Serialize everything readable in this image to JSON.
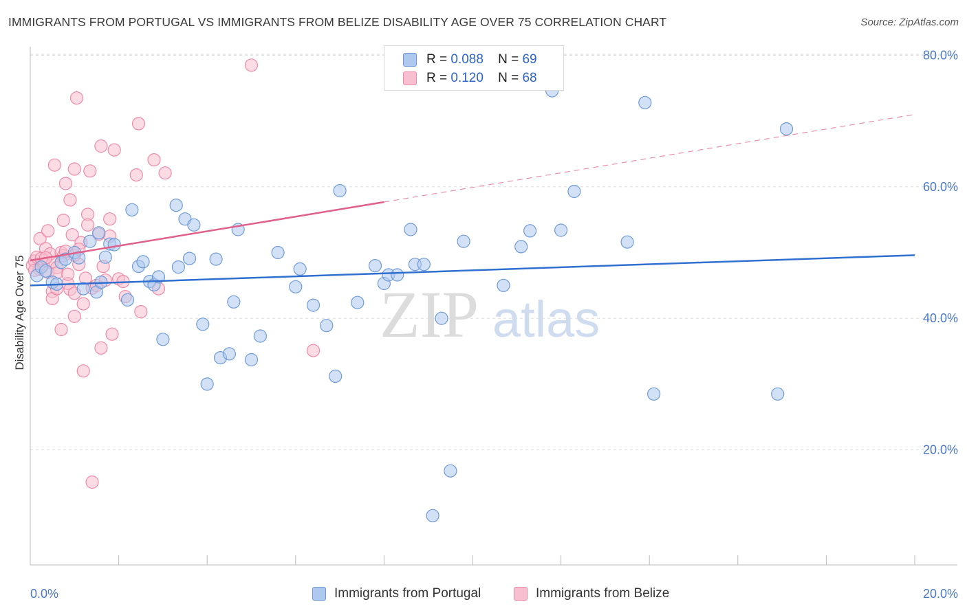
{
  "title": "IMMIGRANTS FROM PORTUGAL VS IMMIGRANTS FROM BELIZE DISABILITY AGE OVER 75 CORRELATION CHART",
  "source": "Source: ZipAtlas.com",
  "watermark": {
    "zip": "ZIP",
    "atlas": "atlas"
  },
  "legend": {
    "rows": [
      {
        "r_label": "R =",
        "r_value": "0.088",
        "n_label": "N =",
        "n_value": "69"
      },
      {
        "r_label": "R =",
        "r_value": "0.120",
        "n_label": "N =",
        "n_value": "68"
      }
    ]
  },
  "colors": {
    "portugal_fill": "#aec8ee",
    "portugal_stroke": "#6f9bd8",
    "portugal_line": "#2e6fcf",
    "belize_fill": "#f7bfd0",
    "belize_stroke": "#ee8aa8",
    "belize_line": "#e0608a",
    "grid": "#dddddd",
    "tick_text": "#4a78c8"
  },
  "chart_data": {
    "type": "scatter",
    "title": "IMMIGRANTS FROM PORTUGAL VS IMMIGRANTS FROM BELIZE DISABILITY AGE OVER 75 CORRELATION CHART",
    "xlabel": "",
    "ylabel": "Disability Age Over 75",
    "xlim": [
      0,
      20
    ],
    "ylim": [
      0,
      82
    ],
    "x_tick_labels": [
      "0.0%",
      "20.0%"
    ],
    "y_ticks": [
      20,
      40,
      60,
      80
    ],
    "y_tick_labels": [
      "20.0%",
      "40.0%",
      "60.0%",
      "80.0%"
    ],
    "grid": true,
    "legend_position": "top-center",
    "series": [
      {
        "name": "Immigrants from Portugal",
        "R": 0.088,
        "N": 69,
        "trend": {
          "x": [
            0,
            20
          ],
          "y": [
            45.0,
            49.6
          ],
          "dashed_after": null
        },
        "points": [
          [
            0.15,
            46.5
          ],
          [
            0.25,
            47.8
          ],
          [
            0.5,
            45.5
          ],
          [
            0.6,
            45.2
          ],
          [
            0.7,
            48.5
          ],
          [
            0.8,
            49.0
          ],
          [
            1.0,
            50.0
          ],
          [
            1.1,
            49.2
          ],
          [
            1.2,
            44.5
          ],
          [
            1.35,
            51.7
          ],
          [
            1.5,
            44.0
          ],
          [
            1.6,
            45.5
          ],
          [
            1.7,
            49.3
          ],
          [
            1.8,
            51.3
          ],
          [
            1.9,
            51.2
          ],
          [
            2.2,
            42.8
          ],
          [
            2.3,
            56.5
          ],
          [
            2.45,
            47.9
          ],
          [
            2.55,
            48.6
          ],
          [
            2.7,
            45.6
          ],
          [
            2.8,
            45.1
          ],
          [
            2.9,
            46.3
          ],
          [
            3.0,
            36.8
          ],
          [
            3.3,
            57.2
          ],
          [
            3.35,
            47.8
          ],
          [
            3.5,
            55.1
          ],
          [
            3.6,
            49.1
          ],
          [
            3.7,
            54.2
          ],
          [
            3.9,
            39.1
          ],
          [
            4.0,
            30.0
          ],
          [
            4.2,
            49.0
          ],
          [
            4.3,
            34.0
          ],
          [
            4.5,
            34.6
          ],
          [
            4.6,
            42.5
          ],
          [
            4.7,
            53.5
          ],
          [
            5.0,
            33.7
          ],
          [
            5.2,
            37.3
          ],
          [
            5.6,
            50.0
          ],
          [
            6.0,
            44.8
          ],
          [
            6.1,
            47.5
          ],
          [
            6.4,
            42.0
          ],
          [
            6.7,
            38.9
          ],
          [
            6.9,
            31.2
          ],
          [
            7.0,
            59.4
          ],
          [
            7.4,
            42.4
          ],
          [
            7.8,
            48.0
          ],
          [
            8.0,
            45.3
          ],
          [
            8.1,
            46.6
          ],
          [
            8.3,
            46.6
          ],
          [
            8.6,
            53.5
          ],
          [
            8.7,
            48.2
          ],
          [
            8.9,
            48.2
          ],
          [
            9.3,
            40.0
          ],
          [
            9.5,
            16.8
          ],
          [
            9.8,
            51.7
          ],
          [
            10.7,
            45.0
          ],
          [
            11.1,
            50.9
          ],
          [
            11.3,
            53.3
          ],
          [
            11.8,
            74.6
          ],
          [
            12.0,
            53.4
          ],
          [
            12.3,
            59.3
          ],
          [
            13.5,
            51.6
          ],
          [
            13.9,
            72.8
          ],
          [
            14.1,
            28.5
          ],
          [
            16.9,
            28.5
          ],
          [
            17.1,
            68.8
          ],
          [
            9.1,
            10.0
          ],
          [
            1.55,
            53.0
          ],
          [
            0.35,
            47.2
          ]
        ]
      },
      {
        "name": "Immigrants from Belize",
        "R": 0.12,
        "N": 68,
        "trend": {
          "x": [
            0,
            20
          ],
          "y": [
            48.8,
            71.0
          ],
          "solid_until_x": 8.0
        },
        "points": [
          [
            0.05,
            48.0
          ],
          [
            0.1,
            48.7
          ],
          [
            0.15,
            49.3
          ],
          [
            0.2,
            47.5
          ],
          [
            0.22,
            52.1
          ],
          [
            0.3,
            48.2
          ],
          [
            0.35,
            50.6
          ],
          [
            0.4,
            53.3
          ],
          [
            0.45,
            49.8
          ],
          [
            0.5,
            48.5
          ],
          [
            0.5,
            44.1
          ],
          [
            0.5,
            43.0
          ],
          [
            0.55,
            63.3
          ],
          [
            0.6,
            44.5
          ],
          [
            0.6,
            47.7
          ],
          [
            0.7,
            50.0
          ],
          [
            0.7,
            38.3
          ],
          [
            0.75,
            54.9
          ],
          [
            0.8,
            60.5
          ],
          [
            0.85,
            45.3
          ],
          [
            0.9,
            58.0
          ],
          [
            0.9,
            44.4
          ],
          [
            0.95,
            52.7
          ],
          [
            1.0,
            43.8
          ],
          [
            1.0,
            40.3
          ],
          [
            1.0,
            62.7
          ],
          [
            1.05,
            73.5
          ],
          [
            1.1,
            48.2
          ],
          [
            1.15,
            51.5
          ],
          [
            1.2,
            42.2
          ],
          [
            1.2,
            32.0
          ],
          [
            1.25,
            46.1
          ],
          [
            1.3,
            55.8
          ],
          [
            1.3,
            54.2
          ],
          [
            1.35,
            62.4
          ],
          [
            1.4,
            44.6
          ],
          [
            1.4,
            15.1
          ],
          [
            1.5,
            45.0
          ],
          [
            1.55,
            52.8
          ],
          [
            1.6,
            66.2
          ],
          [
            1.6,
            35.5
          ],
          [
            1.65,
            47.9
          ],
          [
            1.7,
            45.8
          ],
          [
            1.8,
            52.5
          ],
          [
            1.8,
            55.1
          ],
          [
            1.85,
            37.6
          ],
          [
            1.9,
            65.6
          ],
          [
            2.0,
            46.0
          ],
          [
            2.1,
            45.6
          ],
          [
            2.15,
            43.3
          ],
          [
            2.4,
            61.8
          ],
          [
            2.45,
            69.6
          ],
          [
            2.5,
            41.0
          ],
          [
            2.8,
            64.1
          ],
          [
            2.9,
            44.5
          ],
          [
            3.05,
            62.1
          ],
          [
            0.75,
            49.5
          ],
          [
            0.8,
            50.2
          ],
          [
            1.0,
            49.6
          ],
          [
            0.25,
            49.1
          ],
          [
            0.4,
            47.0
          ],
          [
            0.6,
            46.9
          ],
          [
            0.85,
            46.7
          ],
          [
            0.1,
            47.3
          ],
          [
            0.35,
            49.2
          ],
          [
            1.1,
            50.5
          ],
          [
            5.0,
            78.5
          ],
          [
            6.4,
            35.1
          ]
        ]
      }
    ]
  },
  "bottom_legend": [
    "Immigrants from Portugal",
    "Immigrants from Belize"
  ]
}
